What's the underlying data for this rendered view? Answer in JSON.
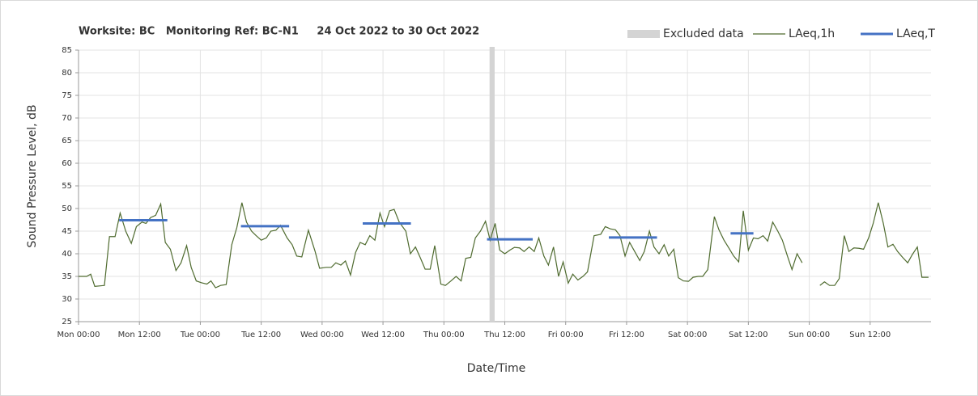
{
  "chart_data": {
    "type": "line",
    "title": "Worksite: BC   Monitoring Ref: BC-N1     24 Oct 2022 to 30 Oct 2022",
    "xlabel": "Date/Time",
    "ylabel": "Sound Pressure Level, dB",
    "legend": "top-right",
    "grid": true,
    "xlim": [
      0,
      168
    ],
    "ylim": [
      25,
      85
    ],
    "yticks": [
      25,
      30,
      35,
      40,
      45,
      50,
      55,
      60,
      65,
      70,
      75,
      80,
      85
    ],
    "xticks": [
      {
        "value": 0,
        "label": "Mon 00:00"
      },
      {
        "value": 12,
        "label": "Mon 12:00"
      },
      {
        "value": 24,
        "label": "Tue 00:00"
      },
      {
        "value": 36,
        "label": "Tue 12:00"
      },
      {
        "value": 48,
        "label": "Wed 00:00"
      },
      {
        "value": 60,
        "label": "Wed 12:00"
      },
      {
        "value": 72,
        "label": "Thu 00:00"
      },
      {
        "value": 84,
        "label": "Thu 12:00"
      },
      {
        "value": 96,
        "label": "Fri 00:00"
      },
      {
        "value": 108,
        "label": "Fri 12:00"
      },
      {
        "value": 120,
        "label": "Sat 00:00"
      },
      {
        "value": 132,
        "label": "Sat 12:00"
      },
      {
        "value": 144,
        "label": "Sun 00:00"
      },
      {
        "value": 156,
        "label": "Sun 12:00"
      }
    ],
    "excluded": {
      "name": "Excluded data",
      "color": "#d4d4d4",
      "x_start": [
        81
      ],
      "x_end": [
        82
      ]
    },
    "series": [
      {
        "name": "LAeq,1h",
        "color": "#4f6b2f",
        "x": [
          0,
          1.6,
          2.4,
          3.2,
          5.1,
          6.1,
          7.2,
          8.2,
          9.3,
          10.4,
          11.4,
          12.5,
          13.3,
          14.2,
          15.2,
          16.2,
          17.1,
          18.1,
          19.2,
          20.2,
          21.3,
          22.2,
          23.2,
          24.2,
          25.3,
          26.1,
          27,
          28,
          29.1,
          30.2,
          31.2,
          32.2,
          33.1,
          34.1,
          35,
          36,
          37,
          37.9,
          38.9,
          39.8,
          41.1,
          42.1,
          43,
          44,
          45.3,
          46.6,
          47.5,
          48.8,
          49.8,
          50.7,
          51.7,
          52.6,
          53.6,
          54.6,
          55.5,
          56.5,
          57.4,
          58.4,
          59.4,
          60.3,
          61.3,
          62.2,
          63.2,
          64.5,
          65.4,
          66.4,
          67.4,
          68.3,
          69.3,
          70.2,
          71.4,
          72.3,
          73.4,
          74.4,
          75.4,
          76.3,
          77.3,
          78.2,
          79.2,
          80.2,
          81.1,
          82.1,
          83,
          84,
          85,
          85.9,
          86.9,
          87.8,
          88.8,
          89.8,
          90.7,
          91.7,
          92.6,
          93.6,
          94.6,
          95.5,
          96.5,
          97.4,
          98.4,
          99.4,
          100.3,
          101.6,
          102.9,
          103.8,
          104.8,
          105.8,
          106.7,
          107.7,
          108.6,
          109.6,
          110.6,
          111.5,
          112.5,
          113.4,
          114.4,
          115.4,
          116.3,
          117.3,
          118.2,
          119.2,
          120.2,
          121.1,
          122.1,
          123,
          124,
          125.3,
          126.2,
          127.2,
          128.2,
          129.1,
          130.1,
          131,
          132,
          133,
          133.9,
          134.9,
          135.8,
          136.8,
          137.8,
          138.7,
          139.7,
          140.6,
          141.6,
          142.6,
          144.4,
          146.1,
          147,
          148,
          149,
          149.9,
          150.9,
          151.8,
          152.8,
          153.8,
          154.7,
          155.7,
          156.6,
          157.6,
          158.6,
          159.5,
          160.5,
          161.4,
          162.4,
          163.4,
          164.3,
          165.3,
          166.2,
          167.5
        ],
        "values": [
          35,
          35,
          35.5,
          32.8,
          33,
          43.8,
          43.8,
          49,
          45,
          42.3,
          46,
          47,
          46.7,
          48,
          48.5,
          51,
          42.5,
          41,
          36.3,
          38,
          41.8,
          37,
          34,
          33.6,
          33.3,
          34,
          32.5,
          33,
          33.2,
          42,
          45.8,
          51.3,
          47,
          45,
          44,
          43,
          43.5,
          45,
          45.2,
          46.3,
          43.5,
          42,
          39.5,
          39.3,
          45.2,
          40.6,
          36.8,
          37,
          37,
          38,
          37.5,
          38.4,
          35.3,
          40.3,
          42.5,
          42,
          44,
          43,
          49,
          46,
          49.5,
          49.8,
          47,
          45,
          40,
          41.5,
          39,
          36.6,
          36.6,
          41.8,
          33.3,
          33,
          34,
          35,
          34,
          39,
          39.2,
          43.5,
          45,
          47.2,
          43,
          46.7,
          40.8,
          40,
          40.8,
          41.4,
          41.3,
          40.5,
          41.5,
          40.5,
          43.5,
          39.5,
          37.5,
          41.5,
          35,
          38.2,
          33.5,
          35.5,
          34.2,
          35,
          36,
          44,
          44.3,
          46,
          45.5,
          45.3,
          44,
          39.5,
          42.5,
          40.5,
          38.5,
          40.5,
          45,
          41.5,
          40,
          42,
          39.5,
          41,
          34.7,
          34,
          33.9,
          34.8,
          35,
          35,
          36.5,
          48.2,
          45.3,
          43,
          41.2,
          39.5,
          38.2,
          49.5,
          40.8,
          43.5,
          43.3,
          44,
          42.8,
          47,
          45,
          43,
          39.5,
          36.5,
          40,
          38,
          null,
          33,
          33.8,
          33,
          33,
          34.5,
          44,
          40.5,
          41.3,
          41.2,
          41,
          43.5,
          46.7,
          51.3,
          46.7,
          41.5,
          42.1,
          40.5,
          39.2,
          38,
          39.8,
          41.5,
          34.8,
          34.8
        ]
      },
      {
        "name": "LAeq,T",
        "color": "#4472c4",
        "x_start": [
          8,
          32,
          56,
          80.5,
          104.5,
          128.5
        ],
        "x_end": [
          17.5,
          41.5,
          65.5,
          89.5,
          114,
          133
        ],
        "values": [
          47.4,
          46.1,
          46.7,
          43.2,
          43.6,
          44.5
        ]
      }
    ]
  }
}
